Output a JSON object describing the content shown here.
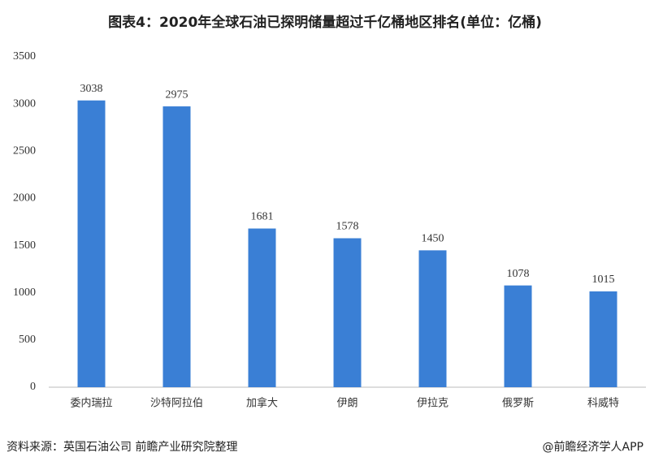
{
  "chart_data": {
    "type": "bar",
    "title": "图表4：2020年全球石油已探明储量超过千亿桶地区排名(单位：亿桶)",
    "categories": [
      "委内瑞拉",
      "沙特阿拉伯",
      "加拿大",
      "伊朗",
      "伊拉克",
      "俄罗斯",
      "科威特"
    ],
    "values": [
      3038,
      2975,
      1681,
      1578,
      1450,
      1078,
      1015
    ],
    "color": "#3a7fd5",
    "ylim": [
      0,
      3500
    ],
    "yticks": [
      0,
      500,
      1000,
      1500,
      2000,
      2500,
      3000,
      3500
    ],
    "grid": false,
    "source": "资料来源：英国石油公司 前瞻产业研究院整理",
    "credit": "@前瞻经济学人APP"
  }
}
